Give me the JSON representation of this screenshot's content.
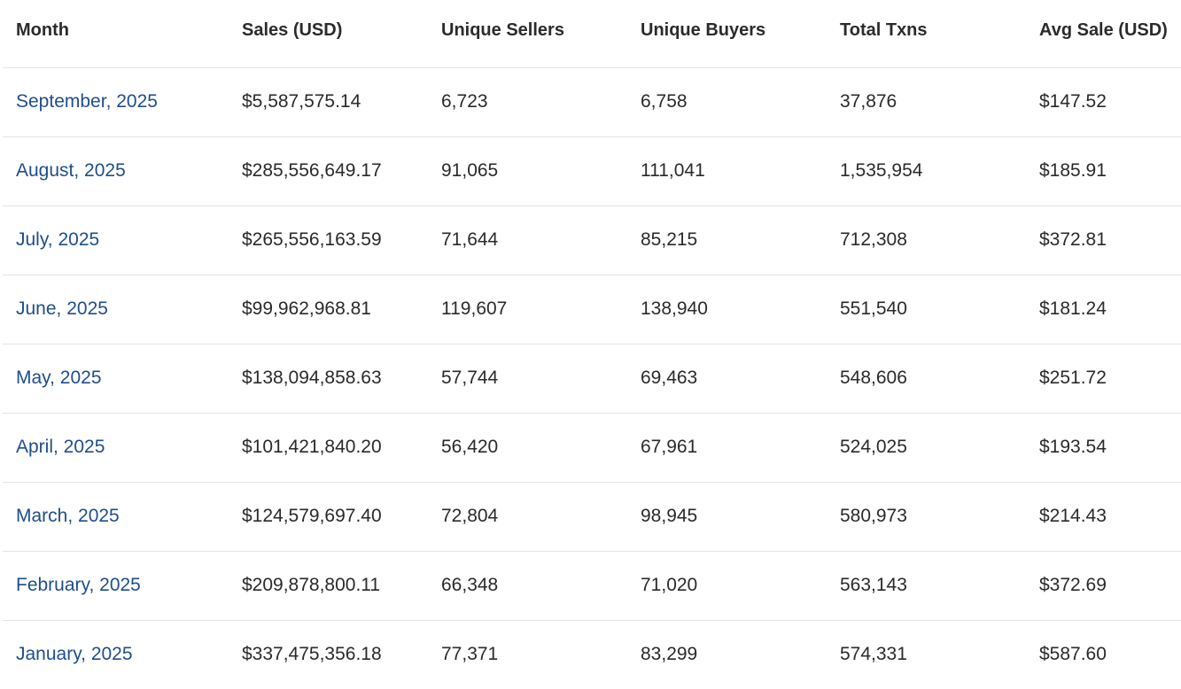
{
  "table": {
    "headers": [
      "Month",
      "Sales (USD)",
      "Unique Sellers",
      "Unique Buyers",
      "Total Txns",
      "Avg Sale (USD)"
    ],
    "rows": [
      {
        "month": "September, 2025",
        "sales": "$5,587,575.14",
        "sellers": "6,723",
        "buyers": "6,758",
        "txns": "37,876",
        "avg": "$147.52"
      },
      {
        "month": "August, 2025",
        "sales": "$285,556,649.17",
        "sellers": "91,065",
        "buyers": "111,041",
        "txns": "1,535,954",
        "avg": "$185.91"
      },
      {
        "month": "July, 2025",
        "sales": "$265,556,163.59",
        "sellers": "71,644",
        "buyers": "85,215",
        "txns": "712,308",
        "avg": "$372.81"
      },
      {
        "month": "June, 2025",
        "sales": "$99,962,968.81",
        "sellers": "119,607",
        "buyers": "138,940",
        "txns": "551,540",
        "avg": "$181.24"
      },
      {
        "month": "May, 2025",
        "sales": "$138,094,858.63",
        "sellers": "57,744",
        "buyers": "69,463",
        "txns": "548,606",
        "avg": "$251.72"
      },
      {
        "month": "April, 2025",
        "sales": "$101,421,840.20",
        "sellers": "56,420",
        "buyers": "67,961",
        "txns": "524,025",
        "avg": "$193.54"
      },
      {
        "month": "March, 2025",
        "sales": "$124,579,697.40",
        "sellers": "72,804",
        "buyers": "98,945",
        "txns": "580,973",
        "avg": "$214.43"
      },
      {
        "month": "February, 2025",
        "sales": "$209,878,800.11",
        "sellers": "66,348",
        "buyers": "71,020",
        "txns": "563,143",
        "avg": "$372.69"
      },
      {
        "month": "January, 2025",
        "sales": "$337,475,356.18",
        "sellers": "77,371",
        "buyers": "83,299",
        "txns": "574,331",
        "avg": "$587.60"
      }
    ]
  },
  "colors": {
    "link": "#1f4e8a",
    "text": "#2a2a2a",
    "divider": "#e3e3e3"
  }
}
